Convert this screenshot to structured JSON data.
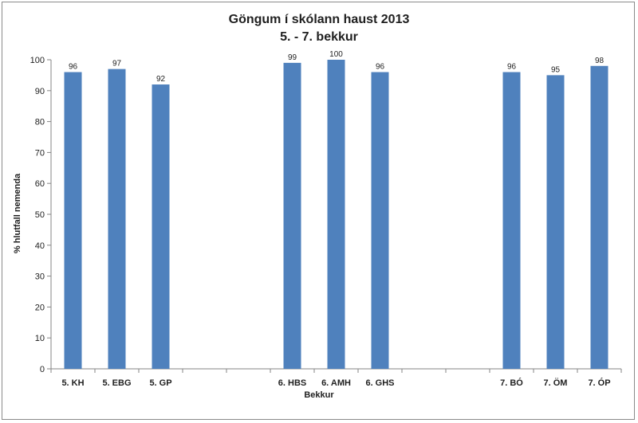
{
  "chart_data": {
    "type": "bar",
    "title": "Göngum í skólann haust 2013",
    "subtitle": "5. - 7. bekkur",
    "xlabel": "Bekkur",
    "ylabel": "% hlutfall nemenda",
    "ylim": [
      0,
      100
    ],
    "yticks": [
      0,
      10,
      20,
      30,
      40,
      50,
      60,
      70,
      80,
      90,
      100
    ],
    "grid": false,
    "legend": "none",
    "bar_color": "#4f81bd",
    "categories": [
      "5. KH",
      "5. EBG",
      "5. GP",
      "",
      "",
      "6. HBS",
      "6. AMH",
      "6. GHS",
      "",
      "",
      "7. BÓ",
      "7. ÖM",
      "7. ÓP"
    ],
    "values": [
      96,
      97,
      92,
      null,
      null,
      99,
      100,
      96,
      null,
      null,
      96,
      95,
      98
    ],
    "data_labels": [
      "96",
      "97",
      "92",
      "",
      "",
      "99",
      "100",
      "96",
      "",
      "",
      "96",
      "95",
      "98"
    ]
  }
}
